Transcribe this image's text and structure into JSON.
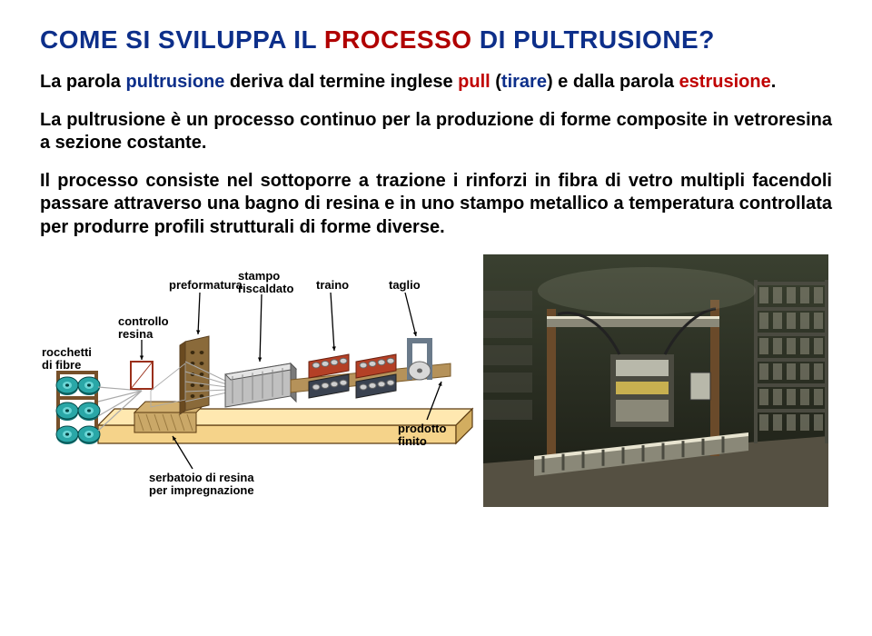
{
  "text": {
    "title_parts": [
      {
        "t": "COME SI SVILUPPA IL ",
        "c": "#0d2f8a"
      },
      {
        "t": "PROCESSO",
        "c": "#b00000"
      },
      {
        "t": " DI PULTRUSIONE?",
        "c": "#0d2f8a"
      }
    ],
    "p1_parts": [
      {
        "t": "La parola ",
        "b": true,
        "c": "#000"
      },
      {
        "t": "pultrusione",
        "b": true,
        "c": "#0d2f8a"
      },
      {
        "t": " deriva dal termine inglese ",
        "b": true,
        "c": "#000"
      },
      {
        "t": "pull",
        "b": true,
        "c": "#c00000"
      },
      {
        "t": " (",
        "b": true,
        "c": "#000"
      },
      {
        "t": "tirare",
        "b": true,
        "c": "#0d2f8a"
      },
      {
        "t": ") e dalla parola ",
        "b": true,
        "c": "#000"
      },
      {
        "t": "estrusione",
        "b": true,
        "c": "#c00000"
      },
      {
        "t": ".",
        "b": true,
        "c": "#000"
      }
    ],
    "p2": "La pultrusione è un processo continuo per la produzione di forme composite in vetroresina a sezione costante.",
    "p3": "Il processo consiste nel sottoporre a trazione i rinforzi in fibra di vetro multipli facendoli passare attraverso una bagno di resina e in uno stampo metallico a temperatura controllata per produrre profili strutturali di forme diverse."
  },
  "diagram": {
    "label_fontsize": 13,
    "labels": {
      "rocchetti": "rocchetti\ndi fibre",
      "controllo": "controllo\nresina",
      "preformatura": "preformatura",
      "stampo": "stampo\nriscaldato",
      "traino": "traino",
      "taglio": "taglio",
      "prodotto": "prodotto\nfinito",
      "serbatoio": "serbatoio di resina\nper impregnazione"
    },
    "colors": {
      "base_fill": "#f5d38a",
      "base_stroke": "#5a3a10",
      "spool_body": "#2aa7a7",
      "spool_dark": "#0e6e6e",
      "spool_light": "#6cd6d6",
      "stand": "#76502a",
      "bath_fill": "#caa868",
      "frame": "#9a2f1a",
      "guide": "#8a6a3a",
      "mold": "#c0c0c0",
      "mold_dark": "#7a7a7a",
      "traction_top": "#b44026",
      "traction_bot": "#3a4250",
      "traction_roller": "#cfcfcf",
      "saw_frame": "#6a7a8a",
      "saw_disc": "#d8d8d8",
      "product": "#b5925a",
      "fiber": "#aaaaaa",
      "resin": "#d2b070"
    }
  },
  "photo": {
    "colors": {
      "bg_top": "#3a4030",
      "bg_bot": "#1a1c14",
      "steel_light": "#b8b8aa",
      "steel_mid": "#8a8878",
      "steel_dark": "#4a4a40",
      "rust": "#6a4a2a",
      "floor": "#555042",
      "yellow": "#c8b050",
      "highlight": "#e8e4d0"
    }
  }
}
